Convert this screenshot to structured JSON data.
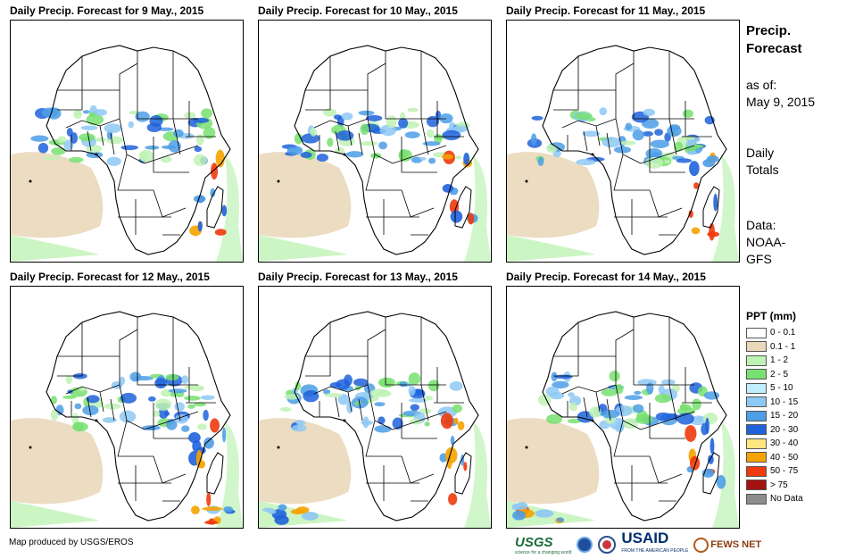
{
  "panels": [
    {
      "title": "Daily Precip. Forecast for 9 May., 2015",
      "variant": 0
    },
    {
      "title": "Daily Precip. Forecast for 10 May., 2015",
      "variant": 1
    },
    {
      "title": "Daily Precip. Forecast for 11 May., 2015",
      "variant": 2
    },
    {
      "title": "Daily Precip. Forecast for 12 May., 2015",
      "variant": 3
    },
    {
      "title": "Daily Precip. Forecast for 13 May., 2015",
      "variant": 4
    },
    {
      "title": "Daily Precip. Forecast for 14 May., 2015",
      "variant": 5
    }
  ],
  "sidebar": {
    "title_line1": "Precip.",
    "title_line2": "Forecast",
    "asof_label": "as of:",
    "asof_date": "May 9, 2015",
    "totals_line1": "Daily",
    "totals_line2": "Totals",
    "data_line1": "Data:",
    "data_line2": "NOAA-",
    "data_line3": "GFS"
  },
  "legend": {
    "title": "PPT (mm)",
    "items": [
      {
        "label": "0 - 0.1",
        "color": "#ffffff"
      },
      {
        "label": "0.1 - 1",
        "color": "#ead8bb"
      },
      {
        "label": "1 - 2",
        "color": "#bff2b5"
      },
      {
        "label": "2 - 5",
        "color": "#78e070"
      },
      {
        "label": "5 - 10",
        "color": "#bfeeff"
      },
      {
        "label": "10 - 15",
        "color": "#8ec8f4"
      },
      {
        "label": "15 - 20",
        "color": "#4c9ee6"
      },
      {
        "label": "20 - 30",
        "color": "#1f62db"
      },
      {
        "label": "30 - 40",
        "color": "#ffe680"
      },
      {
        "label": "40 - 50",
        "color": "#f5a300"
      },
      {
        "label": "50 - 75",
        "color": "#ee3a0c"
      },
      {
        "label": "> 75",
        "color": "#a51212"
      },
      {
        "label": "No Data",
        "color": "#8c8c8c"
      }
    ]
  },
  "footer": {
    "credit": "Map produced by USGS/EROS",
    "logo_usgs": "USGS",
    "logo_usgs_tag": "science for a changing world",
    "logo_usaid": "USAID",
    "logo_usaid_tag": "FROM THE AMERICAN PEOPLE",
    "logo_fews": "FEWS NET"
  }
}
